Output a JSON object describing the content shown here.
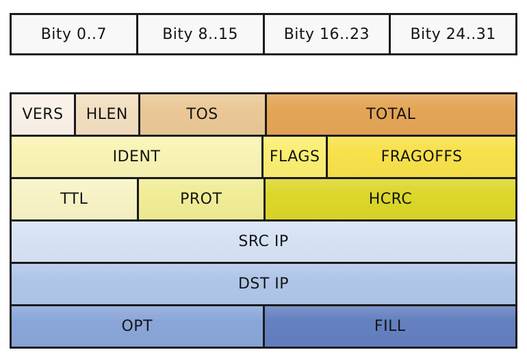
{
  "bit_ruler": {
    "cells": [
      {
        "label": "Bity 0..7"
      },
      {
        "label": "Bity 8..15"
      },
      {
        "label": "Bity 16..23"
      },
      {
        "label": "Bity 24..31"
      }
    ]
  },
  "diagram": {
    "rows": [
      {
        "fields": [
          {
            "label": "VERS",
            "color": "#faf1e8"
          },
          {
            "label": "HLEN",
            "color": "#f2dfc1"
          },
          {
            "label": "TOS",
            "color": "#eac896"
          },
          {
            "label": "TOTAL",
            "color": "#e4a556"
          }
        ]
      },
      {
        "fields": [
          {
            "label": "IDENT",
            "color": "#f9f4b4"
          },
          {
            "label": "FLAGS",
            "color": "#fbee72"
          },
          {
            "label": "FRAGOFFS",
            "color": "#f8e14b"
          }
        ]
      },
      {
        "fields": [
          {
            "label": "TTL",
            "color": "#f7f3c5"
          },
          {
            "label": "PROT",
            "color": "#f1ec96"
          },
          {
            "label": "HCRC",
            "color": "#dcd72b"
          }
        ]
      },
      {
        "fields": [
          {
            "label": "SRC IP",
            "color": "#d7e3f5"
          }
        ]
      },
      {
        "fields": [
          {
            "label": "DST IP",
            "color": "#b0c6e8"
          }
        ]
      },
      {
        "fields": [
          {
            "label": "OPT",
            "color": "#8aa6d9"
          },
          {
            "label": "FILL",
            "color": "#6480c1"
          }
        ]
      }
    ]
  },
  "colors": {
    "border": "#1a1a1a",
    "background": "#ffffff",
    "text": "#141414",
    "ruler_cell": "#f8f8f8"
  }
}
